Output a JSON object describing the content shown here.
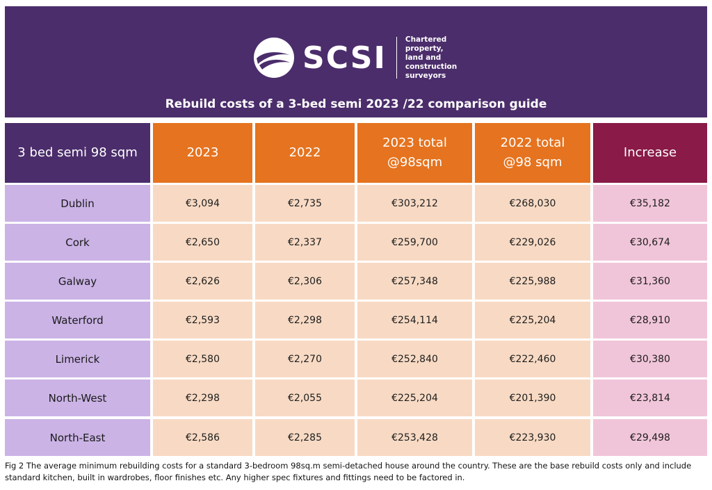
{
  "brand": {
    "name": "SCSI",
    "tagline": [
      "Chartered property,",
      "land and construction",
      "surveyors"
    ],
    "banner_color": "#4b2d6b"
  },
  "title": "Rebuild costs of a 3-bed semi 2023 /22 comparison guide",
  "table": {
    "headers": [
      "3 bed semi 98 sqm",
      "2023",
      "2022",
      "2023 total @98sqm",
      "2022 total @98 sqm",
      "Increase"
    ],
    "rows": [
      [
        "Dublin",
        "€3,094",
        "€2,735",
        "€303,212",
        "€268,030",
        "€35,182"
      ],
      [
        "Cork",
        "€2,650",
        "€2,337",
        "€259,700",
        "€229,026",
        "€30,674"
      ],
      [
        "Galway",
        "€2,626",
        "€2,306",
        "€257,348",
        "€225,988",
        "€31,360"
      ],
      [
        "Waterford",
        "€2,593",
        "€2,298",
        "€254,114",
        "€225,204",
        "€28,910"
      ],
      [
        "Limerick",
        "€2,580",
        "€2,270",
        "€252,840",
        "€222,460",
        "€30,380"
      ],
      [
        "North-West",
        "€2,298",
        "€2,055",
        "€225,204",
        "€201,390",
        "€23,814"
      ],
      [
        "North-East",
        "€2,586",
        "€2,285",
        "€253,428",
        "€223,930",
        "€29,498"
      ]
    ],
    "colors": {
      "region_header": "#4b2d6b",
      "year_header": "#e5731f",
      "increase_header": "#8a1a47",
      "region_cell": "#cbb3e6",
      "value_cell": "#f8dac4",
      "increase_cell": "#f1c5d9"
    }
  },
  "caption": "Fig 2 The average minimum rebuilding costs for a standard 3-bedroom 98sq.m semi-detached house around the country. These are the base rebuild costs only and include standard kitchen, built in wardrobes, floor finishes etc. Any higher spec fixtures and fittings need to be factored in."
}
